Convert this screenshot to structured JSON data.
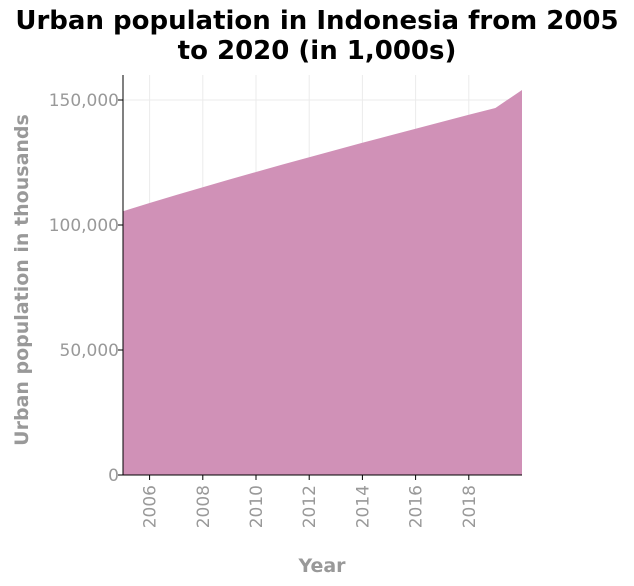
{
  "chart_data": {
    "type": "area",
    "title_lines": [
      "Urban population in Indonesia from 2005",
      "to 2020 (in 1,000s)"
    ],
    "xlabel": "Year",
    "ylabel": "Urban population in thousands",
    "xlim": [
      2005,
      2020
    ],
    "ylim": [
      0,
      160000
    ],
    "x_ticks": [
      2006,
      2008,
      2010,
      2012,
      2014,
      2016,
      2018
    ],
    "y_ticks": [
      0,
      50000,
      100000,
      150000
    ],
    "y_tick_labels": [
      "0",
      "50,000",
      "100,000",
      "150,000"
    ],
    "grid": true,
    "fill_color": "#d091b7",
    "series": [
      {
        "x": [
          2005,
          2006,
          2007,
          2008,
          2009,
          2010,
          2011,
          2012,
          2013,
          2014,
          2015,
          2016,
          2017,
          2018,
          2019,
          2020
        ],
        "values": [
          105500,
          108800,
          112000,
          115100,
          118200,
          121200,
          124200,
          127100,
          130000,
          132900,
          135700,
          138500,
          141300,
          144100,
          146800,
          154000
        ]
      }
    ]
  }
}
